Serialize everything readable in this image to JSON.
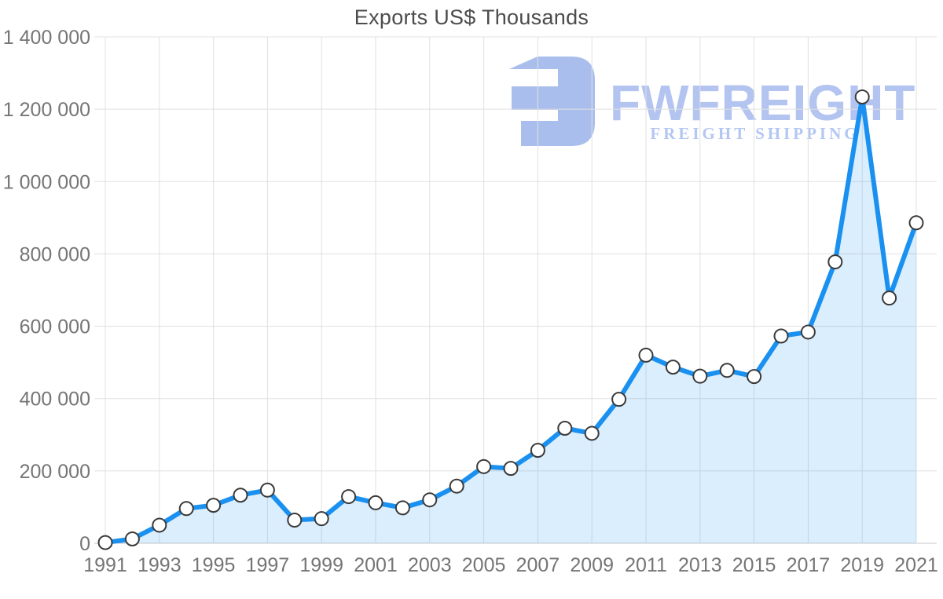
{
  "page": {
    "background": "#ffffff"
  },
  "watermark": {
    "brand": "FWFREIGHT",
    "tagline": "FREIGHT SHIPPING",
    "icon_color": "#a9beec",
    "brand_color": "#b3c4f0",
    "tagline_color": "#b3c7f2"
  },
  "chart_data": {
    "type": "area",
    "title": "Exports US$ Thousands",
    "xlabel": "",
    "ylabel": "",
    "grid": true,
    "legend": false,
    "ylim": [
      0,
      1400000
    ],
    "x": [
      1991,
      1992,
      1993,
      1994,
      1995,
      1996,
      1997,
      1998,
      1999,
      2000,
      2001,
      2002,
      2003,
      2004,
      2005,
      2006,
      2007,
      2008,
      2009,
      2010,
      2011,
      2012,
      2013,
      2014,
      2015,
      2016,
      2017,
      2018,
      2019,
      2020,
      2021
    ],
    "values": [
      2000,
      12000,
      50000,
      96000,
      105000,
      133000,
      147000,
      64000,
      68000,
      129000,
      112000,
      98000,
      120000,
      158000,
      212000,
      207000,
      257000,
      318000,
      304000,
      398000,
      520000,
      487000,
      462000,
      478000,
      461000,
      573000,
      584000,
      778000,
      1234000,
      678000,
      886000
    ],
    "x_ticks": [
      1991,
      1993,
      1995,
      1997,
      1999,
      2001,
      2003,
      2005,
      2007,
      2009,
      2011,
      2013,
      2015,
      2017,
      2019,
      2021
    ],
    "y_ticks": [
      {
        "v": 0,
        "label": "0"
      },
      {
        "v": 200000,
        "label": "200 000"
      },
      {
        "v": 400000,
        "label": "400 000"
      },
      {
        "v": 600000,
        "label": "600 000"
      },
      {
        "v": 800000,
        "label": "800 000"
      },
      {
        "v": 1000000,
        "label": "1 000 000"
      },
      {
        "v": 1200000,
        "label": "1 200 000"
      },
      {
        "v": 1400000,
        "label": "1 400 000"
      }
    ],
    "colors": {
      "line": "#1a90f0",
      "fill": "rgba(26,144,240,0.155)",
      "marker_fill": "#ffffff",
      "marker_stroke": "#3a3a3a",
      "grid": "#e0e0e0",
      "zero_line": "#c9c9c9",
      "axis_text": "#757575",
      "title_text": "#4c4c4c"
    }
  }
}
